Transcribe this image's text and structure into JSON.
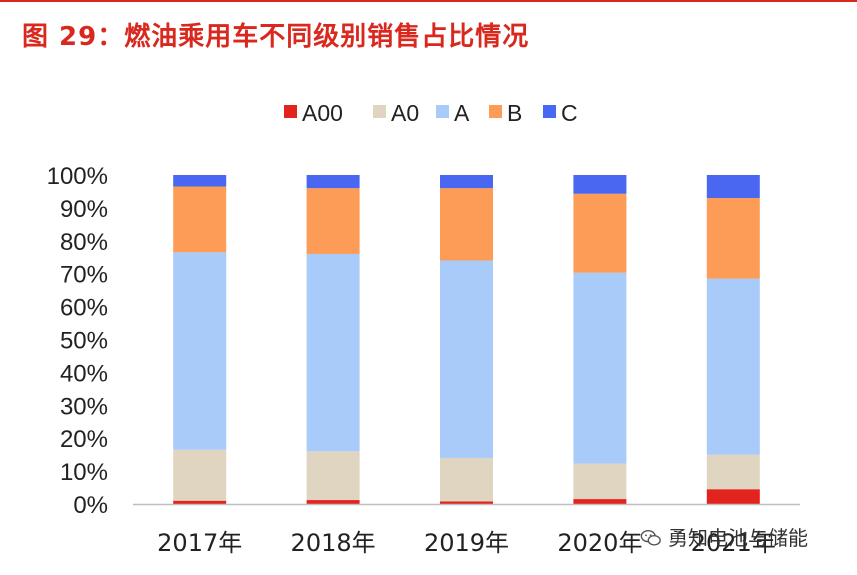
{
  "header": {
    "title": "图 29：燃油乘用车不同级别销售占比情况"
  },
  "colors": {
    "A00": "#e3231d",
    "A0": "#e0d5c0",
    "A": "#a9cbfa",
    "B": "#fd9c56",
    "C": "#4a67f2",
    "title": "#d9281e"
  },
  "chart_data": {
    "type": "bar",
    "stacked": true,
    "categories": [
      "2017年",
      "2018年",
      "2019年",
      "2020年",
      "2021年"
    ],
    "series": [
      {
        "name": "A00",
        "values": [
          1.0,
          1.2,
          0.8,
          1.5,
          4.5
        ]
      },
      {
        "name": "A0",
        "values": [
          15.5,
          14.8,
          13.2,
          10.8,
          10.5
        ]
      },
      {
        "name": "A",
        "values": [
          60.0,
          60.0,
          60.0,
          58.0,
          53.5
        ]
      },
      {
        "name": "B",
        "values": [
          20.0,
          20.0,
          22.0,
          24.0,
          24.5
        ]
      },
      {
        "name": "C",
        "values": [
          3.5,
          4.0,
          4.0,
          5.7,
          7.0
        ]
      }
    ],
    "yticks": [
      "0%",
      "10%",
      "20%",
      "30%",
      "40%",
      "50%",
      "60%",
      "70%",
      "80%",
      "90%",
      "100%"
    ],
    "ylim": [
      0,
      100
    ],
    "legend": "top",
    "grid": false
  },
  "watermark": {
    "text": "勇知电池与储能",
    "icon": "wechat-icon"
  }
}
